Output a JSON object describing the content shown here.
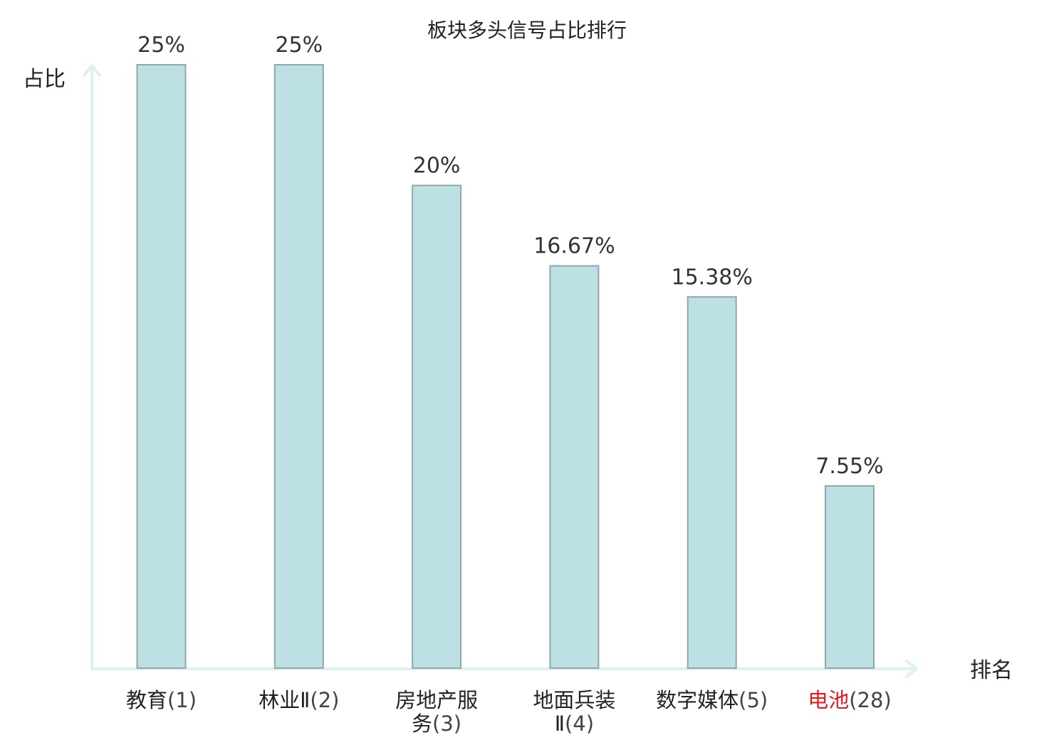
{
  "chart_data": {
    "type": "bar",
    "title": "板块多头信号占比排行",
    "ylabel": "占比",
    "xlabel": "排名",
    "ylim": [
      0,
      25
    ],
    "grid": false,
    "legend": "none",
    "categories": [
      {
        "name": "教育",
        "rank": "(1)",
        "highlight": false
      },
      {
        "name": "林业Ⅱ",
        "rank": "(2)",
        "highlight": false
      },
      {
        "name": "房地产服务",
        "rank": "(3)",
        "highlight": false,
        "wrap": [
          "房地产服",
          "务"
        ]
      },
      {
        "name": "地面兵装Ⅱ",
        "rank": "(4)",
        "highlight": false,
        "wrap": [
          "地面兵装",
          "Ⅱ"
        ]
      },
      {
        "name": "数字媒体",
        "rank": "(5)",
        "highlight": false
      },
      {
        "name": "电池",
        "rank": "(28)",
        "highlight": true
      }
    ],
    "values": [
      25,
      25,
      20,
      16.67,
      15.38,
      7.55
    ],
    "value_labels": [
      "25%",
      "25%",
      "20%",
      "16.67%",
      "15.38%",
      "7.55%"
    ],
    "colors": {
      "bar_fill": "#bce0e3",
      "bar_stroke": "#8fa9ab",
      "axis": "#dff1ef",
      "highlight_text": "#e31a1c",
      "text": "#222222"
    }
  }
}
